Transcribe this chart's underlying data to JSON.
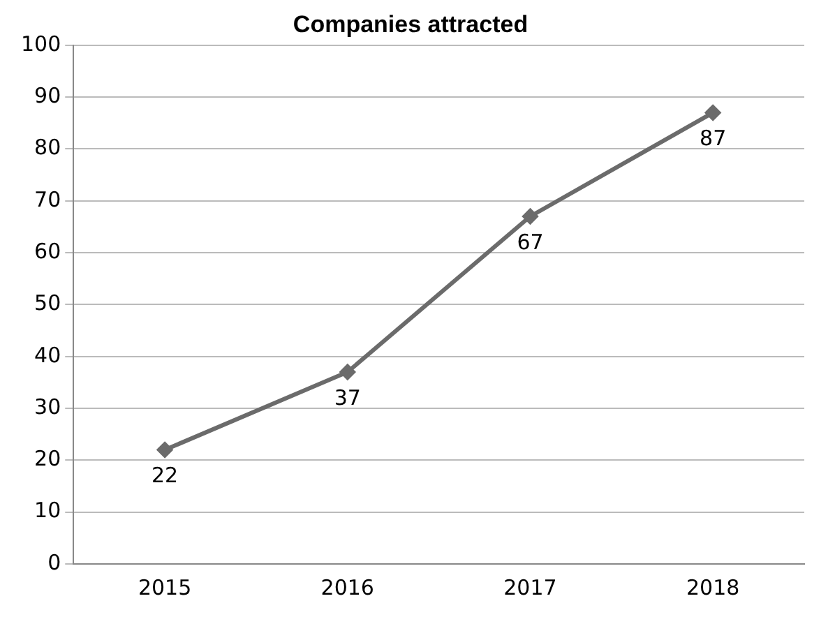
{
  "chart_data": {
    "type": "line",
    "title": "Companies attracted",
    "categories": [
      "2015",
      "2016",
      "2017",
      "2018"
    ],
    "series": [
      {
        "color": "#6b6b6b",
        "values": [
          22,
          37,
          67,
          87
        ]
      }
    ],
    "ylim": [
      0,
      100
    ],
    "yticks": [
      0,
      10,
      20,
      30,
      40,
      50,
      60,
      70,
      80,
      90,
      100
    ],
    "grid": "y",
    "legend": false,
    "marker": "diamond",
    "line_style": "solid",
    "data_labels": true
  }
}
